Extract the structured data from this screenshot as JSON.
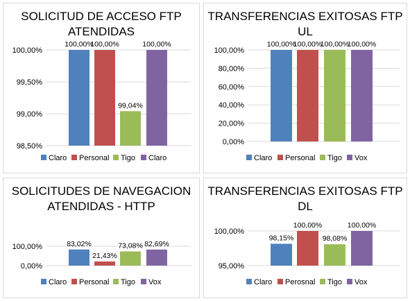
{
  "colors": {
    "blue": "#4F81BD",
    "red": "#C0504D",
    "green": "#9BBB59",
    "purple": "#8064A2",
    "grid": "#d9d9d9"
  },
  "chart_data": [
    {
      "type": "bar",
      "title": "SOLICITUD DE ACCESO FTP ATENDIDAS",
      "series": [
        {
          "name": "Claro",
          "values": [
            100.0
          ]
        },
        {
          "name": "Personal",
          "values": [
            100.0
          ]
        },
        {
          "name": "Tigo",
          "values": [
            99.04
          ]
        },
        {
          "name": "Claro",
          "values": [
            100.0
          ]
        }
      ],
      "data_labels": [
        "100,00%",
        "100,00%",
        "99,04%",
        "100,00%"
      ],
      "yticks": [
        "98,50%",
        "99,00%",
        "99,50%",
        "100,00%"
      ],
      "ylim": [
        98.5,
        100.0
      ],
      "grid": true,
      "legend": "bottom"
    },
    {
      "type": "bar",
      "title": "TRANSFERENCIAS EXITOSAS FTP UL",
      "series": [
        {
          "name": "Claro",
          "values": [
            100.0
          ]
        },
        {
          "name": "Personal",
          "values": [
            100.0
          ]
        },
        {
          "name": "Tigo",
          "values": [
            100.0
          ]
        },
        {
          "name": "Vox",
          "values": [
            100.0
          ]
        }
      ],
      "data_labels": [
        "100,00%",
        "100,00%",
        "100,00%",
        "100,00%"
      ],
      "yticks": [
        "0,00%",
        "20,00%",
        "40,00%",
        "60,00%",
        "80,00%",
        "100,00%"
      ],
      "ylim": [
        0,
        100
      ],
      "grid": true,
      "legend": "bottom"
    },
    {
      "type": "bar",
      "title": "SOLICITUDES DE NAVEGACION ATENDIDAS - HTTP",
      "series": [
        {
          "name": "Claro",
          "values": [
            83.02
          ]
        },
        {
          "name": "Personal",
          "values": [
            21.43
          ]
        },
        {
          "name": "Tigo",
          "values": [
            73.08
          ]
        },
        {
          "name": "Vox",
          "values": [
            82.69
          ]
        }
      ],
      "data_labels": [
        "83,02%",
        "21,43%",
        "73,08%",
        "82,69%"
      ],
      "yticks": [
        "0,00%",
        "100,00%"
      ],
      "ylim": [
        0,
        100
      ],
      "grid": true,
      "legend": "bottom"
    },
    {
      "type": "bar",
      "title": "TRANSFERENCIAS EXITOSAS FTP DL",
      "series": [
        {
          "name": "Claro",
          "values": [
            98.15
          ]
        },
        {
          "name": "Perosnal",
          "values": [
            100.0
          ]
        },
        {
          "name": "Tigo",
          "values": [
            98.08
          ]
        },
        {
          "name": "Vox",
          "values": [
            100.0
          ]
        }
      ],
      "data_labels": [
        "98,15%",
        "100,00%",
        "98,08%",
        "100,00%"
      ],
      "yticks": [
        "95,00%",
        "100,00%"
      ],
      "ylim": [
        95,
        100
      ],
      "grid": true,
      "legend": "bottom"
    }
  ]
}
